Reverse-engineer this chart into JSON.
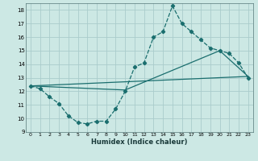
{
  "xlabel": "Humidex (Indice chaleur)",
  "bg_color": "#cce8e4",
  "grid_color": "#aacccc",
  "line_color": "#1a6e6e",
  "xlim": [
    -0.5,
    23.5
  ],
  "ylim": [
    9,
    18.5
  ],
  "yticks": [
    9,
    10,
    11,
    12,
    13,
    14,
    15,
    16,
    17,
    18
  ],
  "xticks": [
    0,
    1,
    2,
    3,
    4,
    5,
    6,
    7,
    8,
    9,
    10,
    11,
    12,
    13,
    14,
    15,
    16,
    17,
    18,
    19,
    20,
    21,
    22,
    23
  ],
  "series1_x": [
    0,
    1,
    2,
    3,
    4,
    5,
    6,
    7,
    8,
    9,
    10,
    11,
    12,
    13,
    14,
    15,
    16,
    17,
    18,
    19,
    20,
    21,
    22,
    23
  ],
  "series1_y": [
    12.4,
    12.2,
    11.6,
    11.1,
    10.2,
    9.7,
    9.6,
    9.8,
    9.8,
    10.7,
    12.0,
    13.8,
    14.1,
    16.0,
    16.4,
    18.3,
    17.0,
    16.4,
    15.8,
    15.2,
    15.0,
    14.8,
    14.1,
    13.0
  ],
  "series2_x": [
    0,
    23
  ],
  "series2_y": [
    12.4,
    13.1
  ],
  "series3_x": [
    0,
    10,
    20,
    23
  ],
  "series3_y": [
    12.4,
    12.1,
    15.0,
    13.1
  ]
}
